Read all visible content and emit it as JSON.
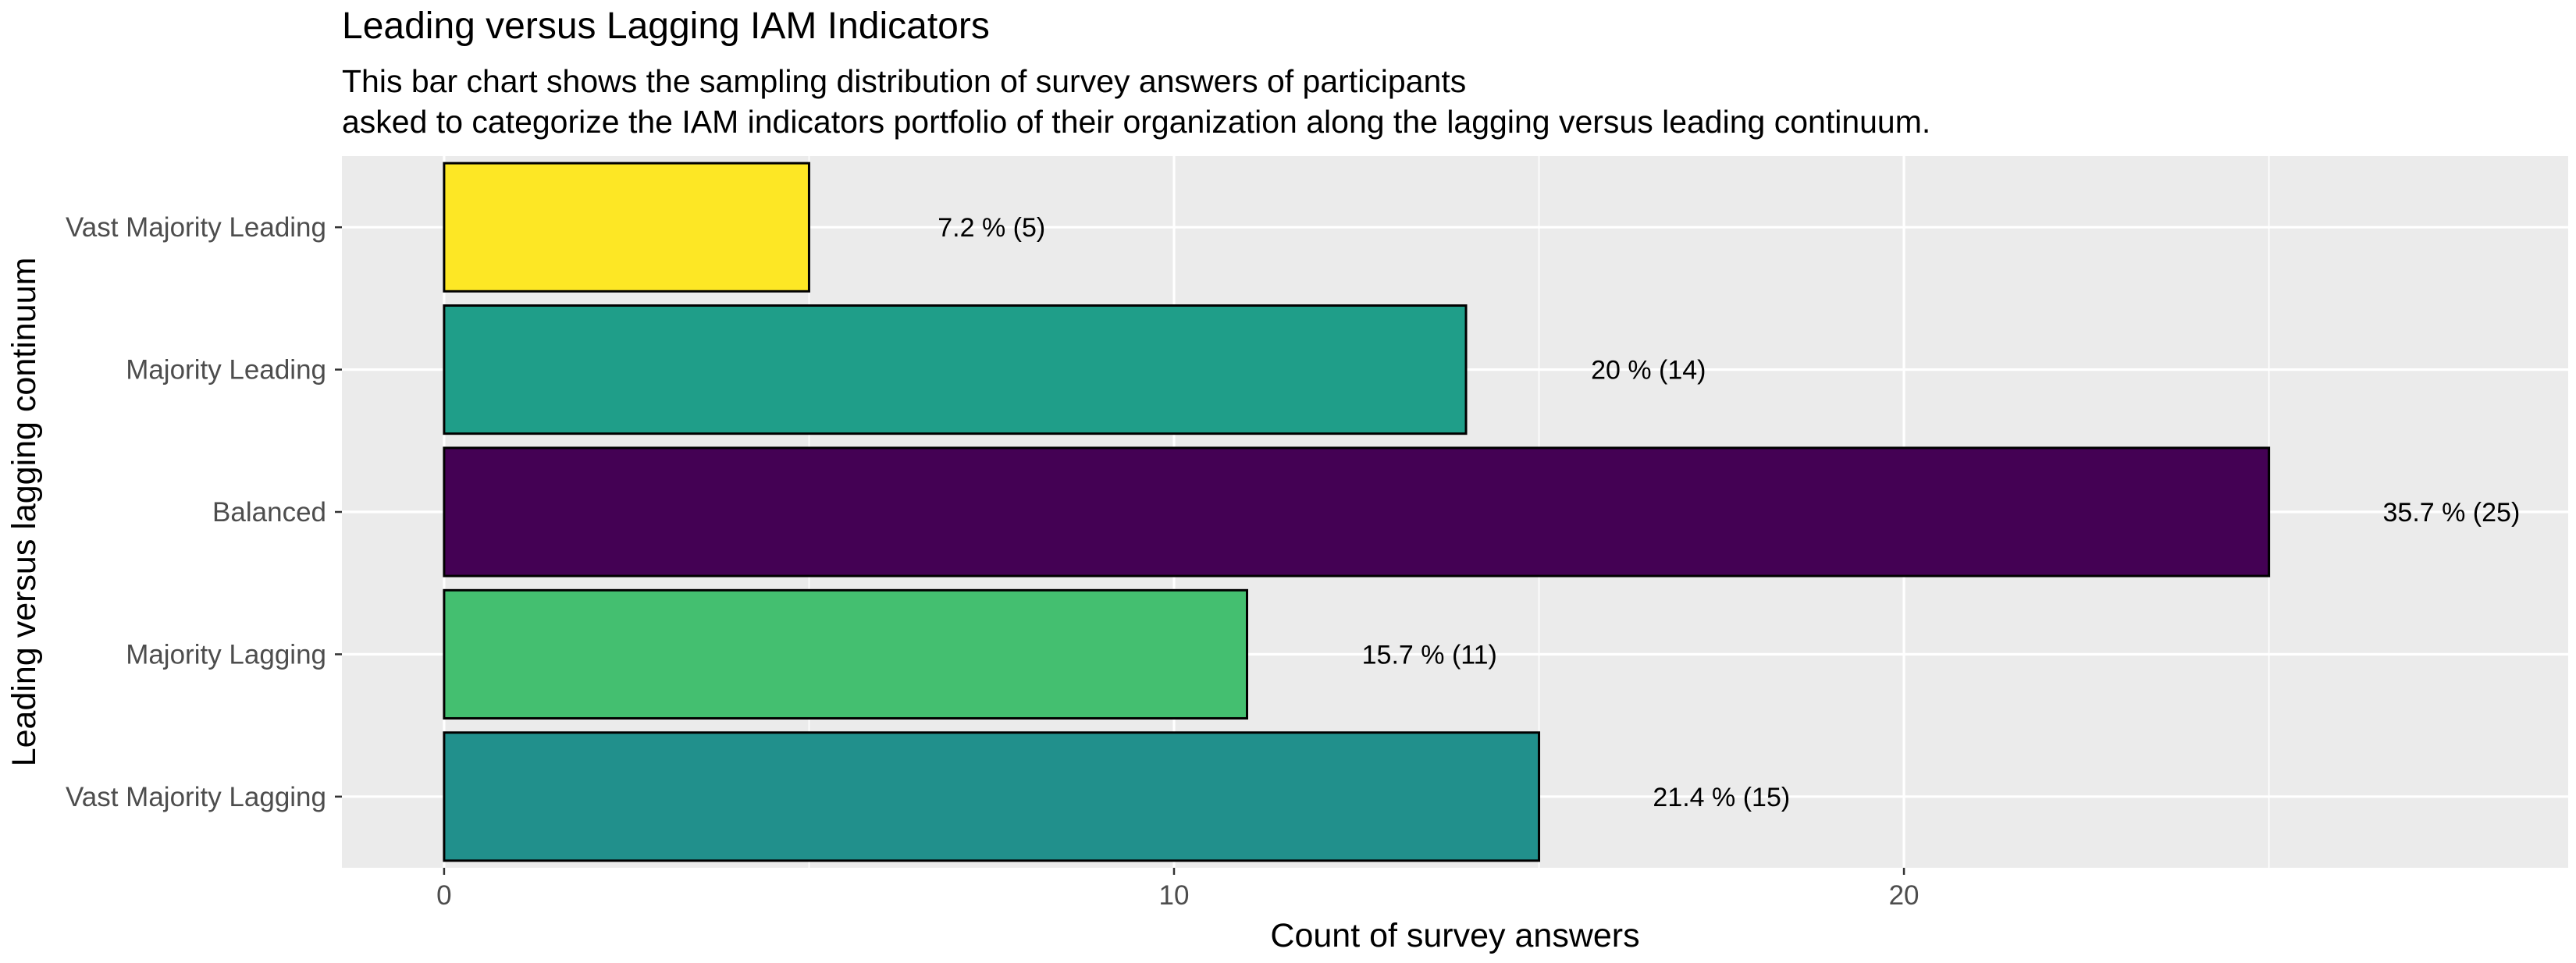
{
  "chart_data": {
    "type": "bar",
    "orientation": "horizontal",
    "title": "Leading versus Lagging IAM Indicators",
    "subtitle_lines": [
      "This bar chart shows the sampling distribution of survey answers of participants",
      "asked to categorize the IAM indicators portfolio of their organization along the lagging versus leading continuum."
    ],
    "xlabel": "Count of survey answers",
    "ylabel": "Leading versus lagging continuum",
    "xlim": [
      -1.4,
      29.1
    ],
    "xticks": [
      0,
      10,
      20
    ],
    "xtick_labels": [
      "0",
      "10",
      "20"
    ],
    "grid": true,
    "legend": "none",
    "categories": [
      "Vast Majority Leading",
      "Majority Leading",
      "Balanced",
      "Majority Lagging",
      "Vast Majority Lagging"
    ],
    "values": [
      5,
      14,
      25,
      11,
      15
    ],
    "labels": [
      "7.2 % (5)",
      "20 % (14)",
      "35.7 % (25)",
      "15.7 % (11)",
      "21.4 % (15)"
    ],
    "colors": [
      "#fde725",
      "#1f9e89",
      "#440154",
      "#44bf70",
      "#21908c"
    ]
  }
}
